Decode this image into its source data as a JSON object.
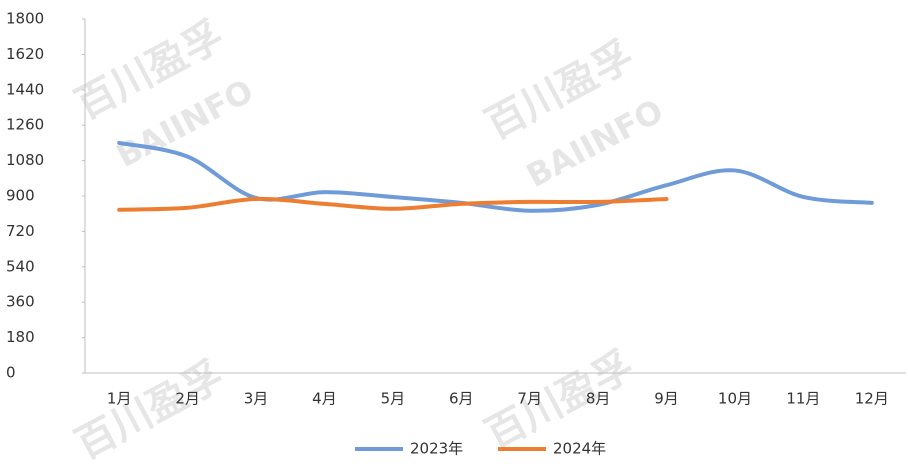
{
  "chart_data": {
    "type": "line",
    "categories": [
      "1月",
      "2月",
      "3月",
      "4月",
      "5月",
      "6月",
      "7月",
      "8月",
      "9月",
      "10月",
      "11月",
      "12月"
    ],
    "series": [
      {
        "name": "2023年",
        "color": "#6f9bd9",
        "values": [
          1170,
          1100,
          890,
          920,
          895,
          865,
          825,
          855,
          955,
          1030,
          895,
          865
        ]
      },
      {
        "name": "2024年",
        "color": "#ed7d31",
        "values": [
          830,
          840,
          885,
          860,
          835,
          860,
          870,
          870,
          885,
          null,
          null,
          null
        ]
      }
    ],
    "ylim": [
      0,
      1800
    ],
    "yticks": [
      0,
      180,
      360,
      540,
      720,
      900,
      1080,
      1260,
      1440,
      1620,
      1800
    ],
    "grid": false,
    "smooth": true,
    "legend": "bottom",
    "watermark": [
      "百川盈孚",
      "BAIINFO"
    ]
  }
}
